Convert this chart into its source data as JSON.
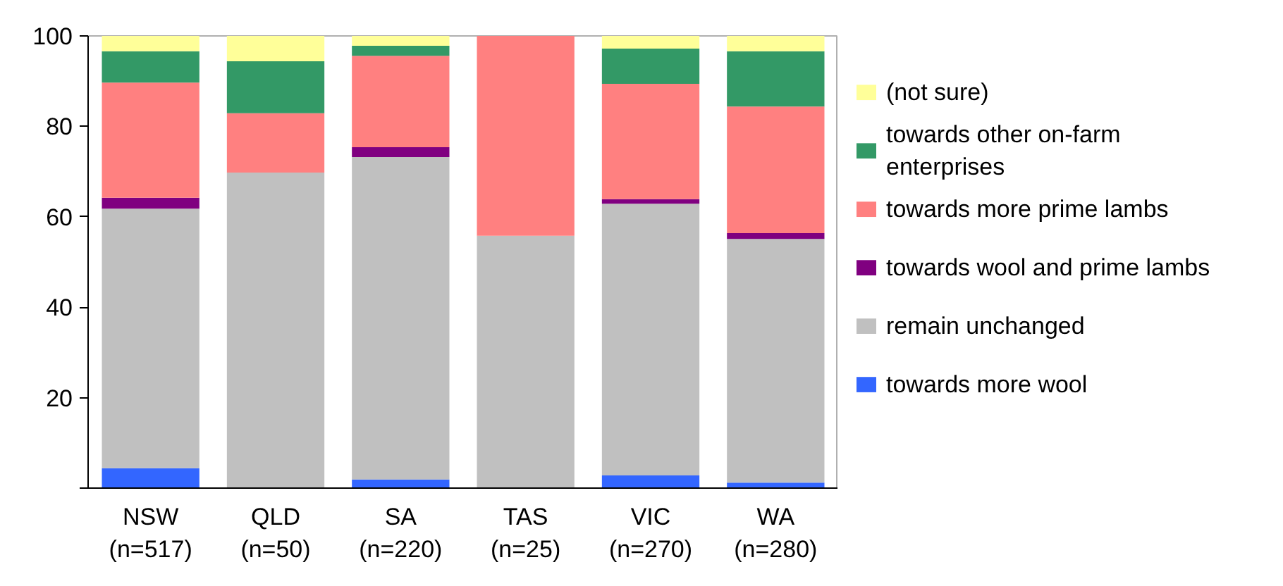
{
  "chart_data": {
    "type": "bar",
    "stacked": true,
    "categories": [
      "NSW\n(n=517)",
      "QLD\n(n=50)",
      "SA\n(n=220)",
      "TAS\n(n=25)",
      "VIC\n(n=270)",
      "WA\n(n=280)"
    ],
    "series": [
      {
        "name": "towards more wool",
        "color": "#3366ff",
        "values": [
          4.4,
          0,
          1.9,
          0,
          2.8,
          1.2
        ]
      },
      {
        "name": "remain unchanged",
        "color": "#c0c0c0",
        "values": [
          57.4,
          69.8,
          71.3,
          55.8,
          60.1,
          53.9
        ]
      },
      {
        "name": "towards wool and prime lambs",
        "color": "#800080",
        "values": [
          2.4,
          0,
          2.2,
          0,
          1.0,
          1.3
        ]
      },
      {
        "name": "towards more prime lambs",
        "color": "#ff8080",
        "values": [
          25.5,
          13.1,
          20.2,
          44.2,
          25.5,
          28.0
        ]
      },
      {
        "name": "towards other on-farm\nenterprises",
        "color": "#339966",
        "values": [
          6.9,
          11.5,
          2.2,
          0,
          7.8,
          12.2
        ]
      },
      {
        "name": "(not sure)",
        "color": "#ffff99",
        "values": [
          3.4,
          5.6,
          2.2,
          0,
          2.8,
          3.4
        ]
      }
    ],
    "ylim": [
      0,
      100
    ],
    "yticks": [
      {
        "value": 0,
        "label": null
      },
      20,
      40,
      60,
      80,
      100
    ],
    "grid": false,
    "legend": "right"
  }
}
